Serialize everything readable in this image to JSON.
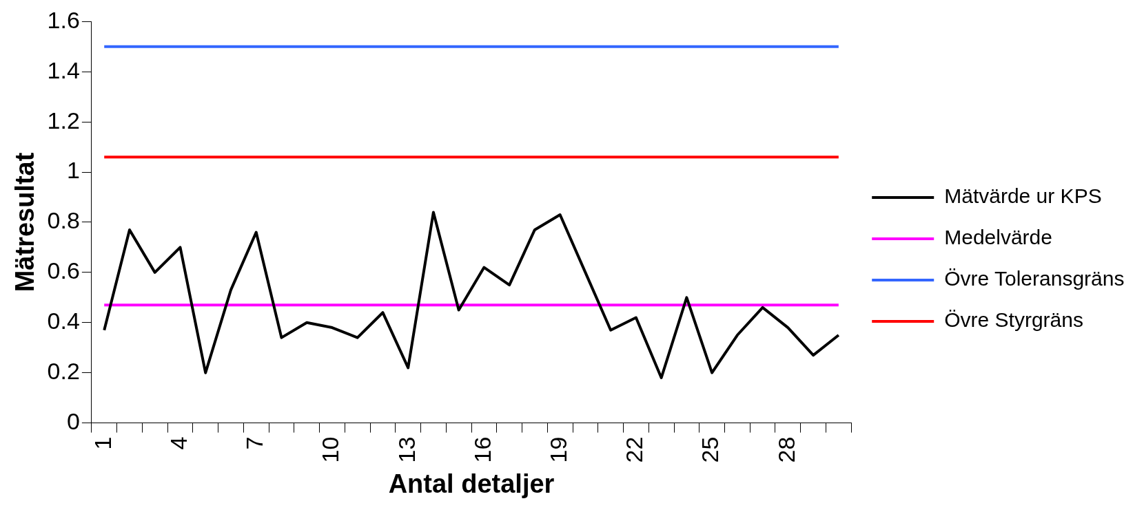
{
  "chart_data": {
    "type": "line",
    "xlabel": "Antal detaljer",
    "ylabel": "Mätresultat",
    "categories": [
      "1",
      null,
      null,
      "4",
      null,
      null,
      "7",
      null,
      null,
      "10",
      null,
      null,
      "13",
      null,
      null,
      "16",
      null,
      null,
      "19",
      null,
      null,
      "22",
      null,
      null,
      "25",
      null,
      null,
      "28",
      null,
      null
    ],
    "series": [
      {
        "name": "Mätvärde ur KPS",
        "color": "#000000",
        "values": [
          0.37,
          0.77,
          0.6,
          0.7,
          0.2,
          0.53,
          0.76,
          0.34,
          0.4,
          0.38,
          0.34,
          0.44,
          0.22,
          0.84,
          0.45,
          0.62,
          0.55,
          0.77,
          0.83,
          0.6,
          0.37,
          0.42,
          0.18,
          0.5,
          0.2,
          0.35,
          0.46,
          0.38,
          0.27,
          0.35
        ]
      },
      {
        "name": "Medelvärde",
        "color": "#ff00ff",
        "values": [
          0.47,
          0.47,
          0.47,
          0.47,
          0.47,
          0.47,
          0.47,
          0.47,
          0.47,
          0.47,
          0.47,
          0.47,
          0.47,
          0.47,
          0.47,
          0.47,
          0.47,
          0.47,
          0.47,
          0.47,
          0.47,
          0.47,
          0.47,
          0.47,
          0.47,
          0.47,
          0.47,
          0.47,
          0.47,
          0.47
        ]
      },
      {
        "name": "Övre Toleransgräns",
        "color": "#3366ff",
        "values": [
          1.5,
          1.5,
          1.5,
          1.5,
          1.5,
          1.5,
          1.5,
          1.5,
          1.5,
          1.5,
          1.5,
          1.5,
          1.5,
          1.5,
          1.5,
          1.5,
          1.5,
          1.5,
          1.5,
          1.5,
          1.5,
          1.5,
          1.5,
          1.5,
          1.5,
          1.5,
          1.5,
          1.5,
          1.5,
          1.5
        ]
      },
      {
        "name": "Övre Styrgräns",
        "color": "#ff0000",
        "values": [
          1.06,
          1.06,
          1.06,
          1.06,
          1.06,
          1.06,
          1.06,
          1.06,
          1.06,
          1.06,
          1.06,
          1.06,
          1.06,
          1.06,
          1.06,
          1.06,
          1.06,
          1.06,
          1.06,
          1.06,
          1.06,
          1.06,
          1.06,
          1.06,
          1.06,
          1.06,
          1.06,
          1.06,
          1.06,
          1.06
        ]
      }
    ],
    "ylim": [
      0,
      1.6
    ],
    "yticks": [
      0,
      0.2,
      0.4,
      0.6,
      0.8,
      1,
      1.2,
      1.4,
      1.6
    ],
    "grid": false,
    "legend": "right"
  }
}
